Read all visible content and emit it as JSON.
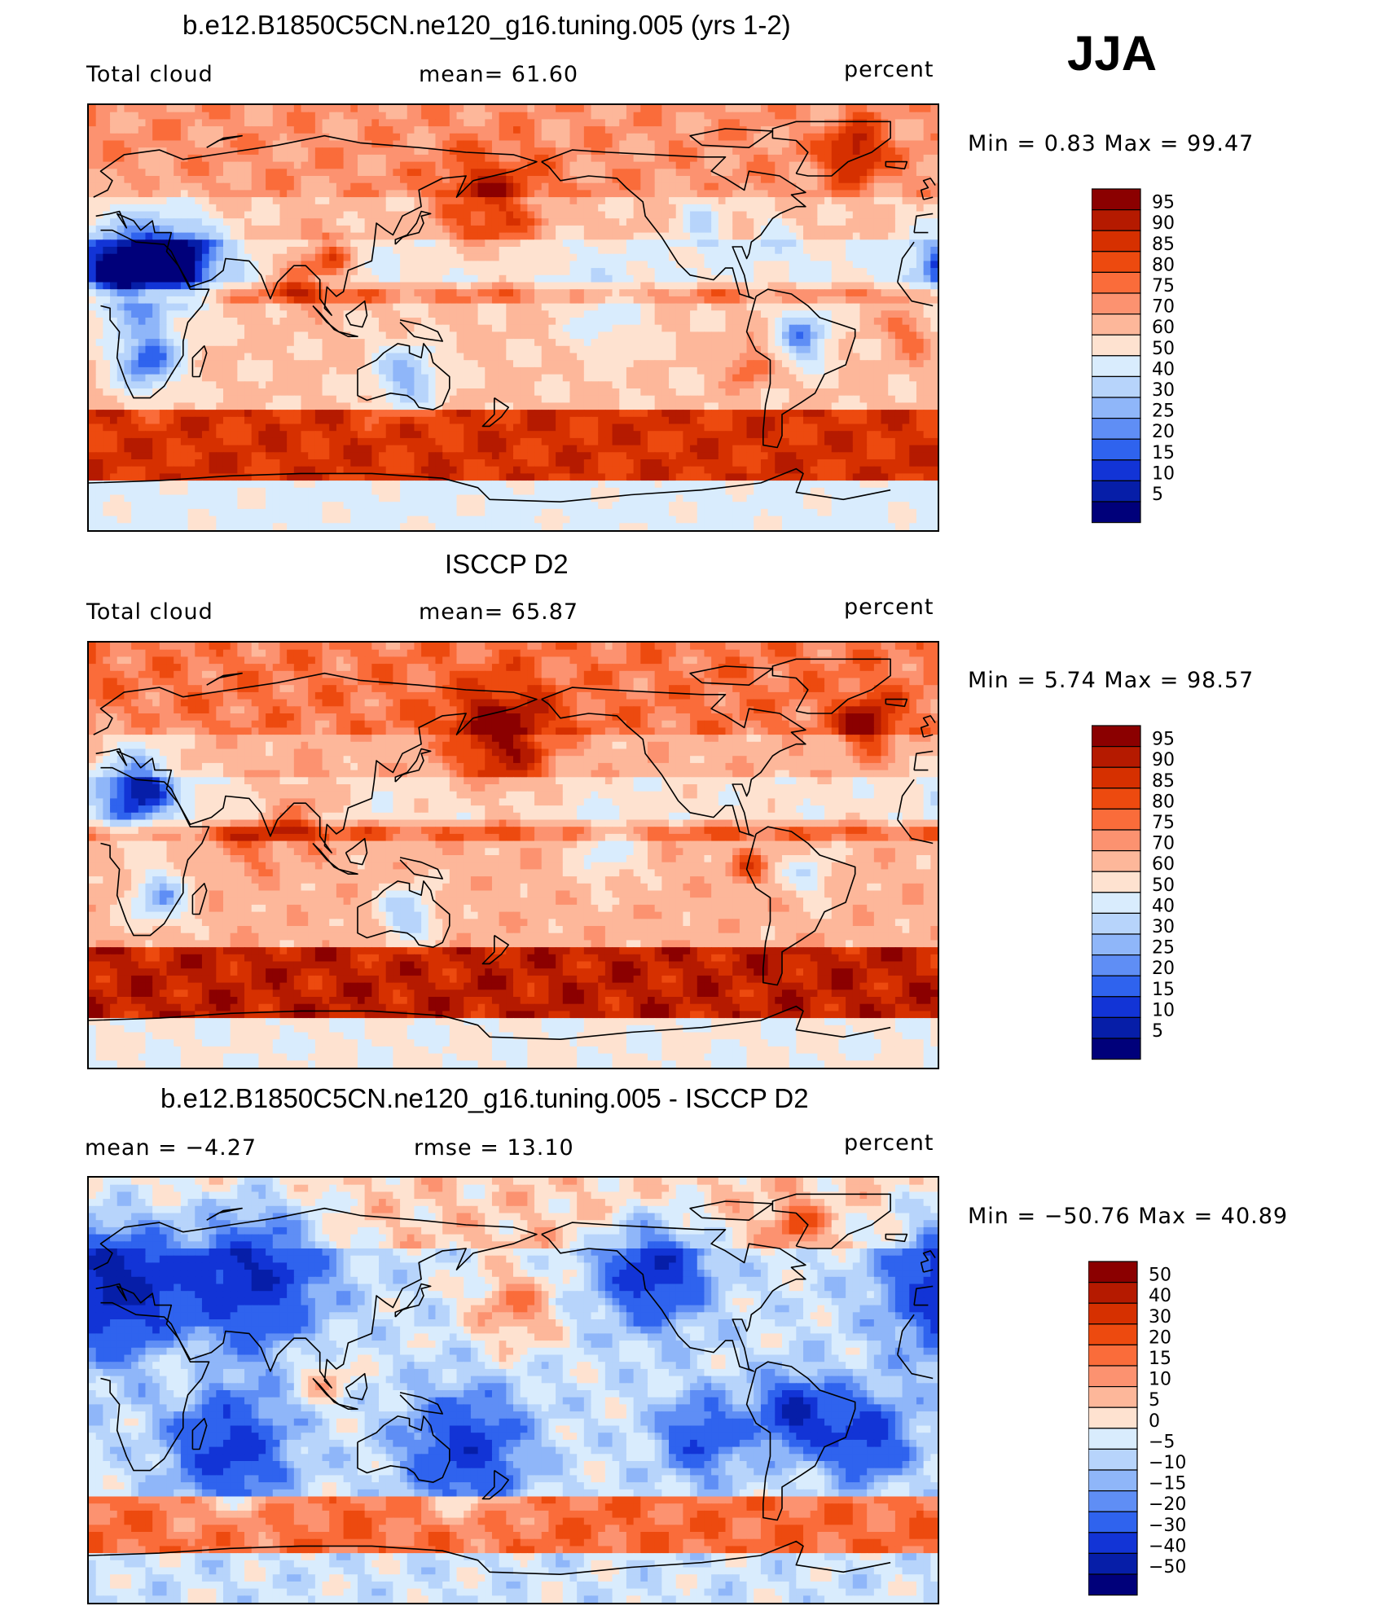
{
  "season": "JJA",
  "panels": [
    {
      "title": "b.e12.B1850C5CN.ne120_g16.tuning.005 (yrs 1-2)",
      "left_label": "Total cloud",
      "center_label": "mean=   61.60",
      "units": "percent",
      "minmax": "Min =    0.83 Max =   99.47"
    },
    {
      "title": "ISCCP D2",
      "left_label": "Total cloud",
      "center_label": "mean=   65.87",
      "units": "percent",
      "minmax": "Min =    5.74 Max =   98.57"
    },
    {
      "title": "b.e12.B1850C5CN.ne120_g16.tuning.005 - ISCCP D2",
      "left_label": "mean =   −4.27",
      "center_label": "rmse =   13.10",
      "units": "percent",
      "minmax": "Min = −50.76 Max =   40.89"
    }
  ],
  "chart_data": [
    {
      "type": "heatmap",
      "title": "b.e12.B1850C5CN.ne120_g16.tuning.005 (yrs 1-2)",
      "variable": "Total cloud",
      "units": "percent",
      "mean": 61.6,
      "min": 0.83,
      "max": 99.47,
      "colorbar_levels": [
        95,
        90,
        85,
        80,
        75,
        70,
        60,
        50,
        40,
        30,
        25,
        20,
        15,
        10,
        5
      ],
      "colorbar_colors": [
        "#8b0000",
        "#b51a00",
        "#d63000",
        "#ed4a0f",
        "#fa6c3a",
        "#fc9270",
        "#fdb79a",
        "#fee2d0",
        "#d9ecfd",
        "#b7d4fb",
        "#8fb6f9",
        "#5f8ef5",
        "#2f63ee",
        "#1234d6",
        "#061ea8",
        "#00007a"
      ]
    },
    {
      "type": "heatmap",
      "title": "ISCCP D2",
      "variable": "Total cloud",
      "units": "percent",
      "mean": 65.87,
      "min": 5.74,
      "max": 98.57,
      "colorbar_levels": [
        95,
        90,
        85,
        80,
        75,
        70,
        60,
        50,
        40,
        30,
        25,
        20,
        15,
        10,
        5
      ],
      "colorbar_colors": [
        "#8b0000",
        "#b51a00",
        "#d63000",
        "#ed4a0f",
        "#fa6c3a",
        "#fc9270",
        "#fdb79a",
        "#fee2d0",
        "#d9ecfd",
        "#b7d4fb",
        "#8fb6f9",
        "#5f8ef5",
        "#2f63ee",
        "#1234d6",
        "#061ea8",
        "#00007a"
      ]
    },
    {
      "type": "heatmap",
      "title": "b.e12.B1850C5CN.ne120_g16.tuning.005 - ISCCP D2",
      "units": "percent",
      "mean": -4.27,
      "rmse": 13.1,
      "min": -50.76,
      "max": 40.89,
      "colorbar_levels": [
        "50",
        "40",
        "30",
        "20",
        "15",
        "10",
        "5",
        "0",
        "−5",
        "−10",
        "−15",
        "−20",
        "−30",
        "−40",
        "−50"
      ],
      "colorbar_colors": [
        "#8b0000",
        "#b51a00",
        "#d63000",
        "#ed4a0f",
        "#fa6c3a",
        "#fc9270",
        "#fdb79a",
        "#fee2d0",
        "#d9ecfd",
        "#b7d4fb",
        "#8fb6f9",
        "#5f8ef5",
        "#2f63ee",
        "#1234d6",
        "#061ea8",
        "#00007a"
      ]
    }
  ]
}
